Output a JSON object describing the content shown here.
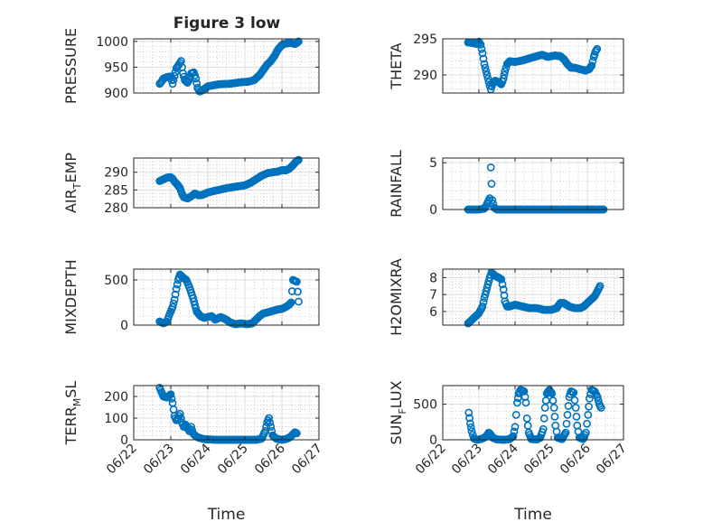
{
  "figure_title": "Figure 3 low",
  "marker_color": "#0072BD",
  "chart_data": [
    {
      "type": "scatter",
      "title": "Figure 3 low",
      "ylabel": "PRESSURE",
      "ylabel_sub": "",
      "ylim": [
        900,
        1005
      ],
      "yticks": [
        900,
        950,
        1000
      ],
      "xlim": [
        0,
        5
      ],
      "xticks": [
        "06/22",
        "06/23",
        "06/24",
        "06/25",
        "06/26",
        "06/27"
      ],
      "show_xticklabels": false,
      "xlabel": "",
      "grid": "on",
      "anchors": [
        [
          0.7,
          918
        ],
        [
          0.75,
          922
        ],
        [
          0.8,
          928
        ],
        [
          0.9,
          931
        ],
        [
          1.0,
          932
        ],
        [
          1.05,
          918
        ],
        [
          1.1,
          933
        ],
        [
          1.15,
          948
        ],
        [
          1.22,
          955
        ],
        [
          1.28,
          962
        ],
        [
          1.33,
          938
        ],
        [
          1.38,
          925
        ],
        [
          1.45,
          920
        ],
        [
          1.5,
          926
        ],
        [
          1.55,
          938
        ],
        [
          1.62,
          940
        ],
        [
          1.68,
          928
        ],
        [
          1.72,
          910
        ],
        [
          1.78,
          903
        ],
        [
          1.85,
          905
        ],
        [
          2.0,
          913
        ],
        [
          2.3,
          917
        ],
        [
          2.6,
          918
        ],
        [
          2.9,
          921
        ],
        [
          3.1,
          922
        ],
        [
          3.25,
          925
        ],
        [
          3.4,
          935
        ],
        [
          3.5,
          945
        ],
        [
          3.6,
          955
        ],
        [
          3.7,
          962
        ],
        [
          3.8,
          972
        ],
        [
          3.9,
          985
        ],
        [
          4.0,
          993
        ],
        [
          4.1,
          996
        ],
        [
          4.25,
          997
        ],
        [
          4.35,
          995
        ],
        [
          4.42,
          998
        ],
        [
          4.45,
          1000
        ]
      ]
    },
    {
      "type": "scatter",
      "title": "",
      "ylabel": "THETA",
      "ylabel_sub": "",
      "ylim": [
        287.5,
        295
      ],
      "yticks": [
        290,
        295
      ],
      "xlim": [
        0,
        5
      ],
      "xticks": [
        "06/22",
        "06/23",
        "06/24",
        "06/25",
        "06/26",
        "06/27"
      ],
      "show_xticklabels": false,
      "xlabel": "",
      "grid": "on",
      "anchors": [
        [
          0.7,
          294.5
        ],
        [
          0.85,
          294.4
        ],
        [
          0.95,
          294.3
        ],
        [
          1.0,
          294.6
        ],
        [
          1.05,
          294.2
        ],
        [
          1.1,
          293.0
        ],
        [
          1.15,
          291.5
        ],
        [
          1.2,
          290.5
        ],
        [
          1.25,
          289.5
        ],
        [
          1.3,
          288.5
        ],
        [
          1.33,
          288.0
        ],
        [
          1.38,
          288.8
        ],
        [
          1.45,
          289.2
        ],
        [
          1.55,
          289.0
        ],
        [
          1.62,
          288.7
        ],
        [
          1.68,
          289.5
        ],
        [
          1.72,
          290.5
        ],
        [
          1.78,
          291.5
        ],
        [
          1.85,
          291.9
        ],
        [
          2.0,
          291.8
        ],
        [
          2.2,
          292.0
        ],
        [
          2.4,
          292.3
        ],
        [
          2.6,
          292.6
        ],
        [
          2.75,
          292.8
        ],
        [
          2.9,
          292.5
        ],
        [
          3.1,
          292.7
        ],
        [
          3.25,
          292.6
        ],
        [
          3.35,
          292.2
        ],
        [
          3.45,
          291.5
        ],
        [
          3.55,
          291.0
        ],
        [
          3.65,
          291.0
        ],
        [
          3.8,
          290.8
        ],
        [
          3.95,
          290.6
        ],
        [
          4.05,
          290.8
        ],
        [
          4.12,
          291.3
        ],
        [
          4.18,
          292.5
        ],
        [
          4.22,
          293.2
        ],
        [
          4.27,
          293.6
        ]
      ]
    },
    {
      "type": "scatter",
      "title": "",
      "ylabel": "AIR",
      "ylabel_sub": "T",
      "ylabel_after": "EMP",
      "ylim": [
        280,
        294
      ],
      "yticks": [
        280,
        285,
        290
      ],
      "xlim": [
        0,
        5
      ],
      "xticks": [
        "06/22",
        "06/23",
        "06/24",
        "06/25",
        "06/26",
        "06/27"
      ],
      "show_xticklabels": false,
      "xlabel": "",
      "grid": "on",
      "anchors": [
        [
          0.7,
          287.5
        ],
        [
          0.8,
          288.0
        ],
        [
          0.9,
          288.5
        ],
        [
          1.0,
          288.6
        ],
        [
          1.05,
          288.2
        ],
        [
          1.1,
          287.4
        ],
        [
          1.2,
          286.2
        ],
        [
          1.25,
          285.5
        ],
        [
          1.3,
          284.0
        ],
        [
          1.35,
          283.0
        ],
        [
          1.45,
          282.6
        ],
        [
          1.55,
          283.2
        ],
        [
          1.65,
          284.0
        ],
        [
          1.75,
          283.5
        ],
        [
          1.85,
          283.6
        ],
        [
          2.0,
          284.3
        ],
        [
          2.2,
          284.8
        ],
        [
          2.5,
          285.5
        ],
        [
          2.8,
          286.0
        ],
        [
          3.0,
          286.3
        ],
        [
          3.15,
          287.0
        ],
        [
          3.3,
          288.0
        ],
        [
          3.45,
          289.0
        ],
        [
          3.6,
          289.7
        ],
        [
          3.75,
          290.0
        ],
        [
          3.9,
          290.2
        ],
        [
          4.0,
          290.6
        ],
        [
          4.1,
          290.5
        ],
        [
          4.2,
          291.0
        ],
        [
          4.3,
          292.0
        ],
        [
          4.38,
          293.0
        ],
        [
          4.45,
          293.5
        ]
      ]
    },
    {
      "type": "scatter",
      "title": "",
      "ylabel": "RAINFALL",
      "ylabel_sub": "",
      "ylim": [
        0,
        5.5
      ],
      "yticks": [
        0,
        5
      ],
      "xlim": [
        0,
        5
      ],
      "xticks": [
        "06/22",
        "06/23",
        "06/24",
        "06/25",
        "06/26",
        "06/27"
      ],
      "show_xticklabels": false,
      "xlabel": "",
      "grid": "on",
      "anchors": [
        [
          0.7,
          0
        ],
        [
          1.0,
          0
        ],
        [
          1.15,
          0.1
        ],
        [
          1.2,
          0.4
        ],
        [
          1.25,
          0.8
        ],
        [
          1.3,
          1.2
        ],
        [
          1.33,
          4.5
        ],
        [
          1.37,
          1.0
        ],
        [
          1.42,
          0.2
        ],
        [
          1.5,
          0
        ],
        [
          2.0,
          0
        ],
        [
          2.5,
          0
        ],
        [
          3.0,
          0
        ],
        [
          3.5,
          0
        ],
        [
          4.0,
          0
        ],
        [
          4.45,
          0
        ]
      ],
      "density": 3
    },
    {
      "type": "scatter",
      "title": "",
      "ylabel": "MIXDEPTH",
      "ylabel_sub": "",
      "ylim": [
        0,
        620
      ],
      "yticks": [
        0,
        500
      ],
      "xlim": [
        0,
        5
      ],
      "xticks": [
        "06/22",
        "06/23",
        "06/24",
        "06/25",
        "06/26",
        "06/27"
      ],
      "show_xticklabels": false,
      "xlabel": "",
      "grid": "on",
      "anchors": [
        [
          0.7,
          40
        ],
        [
          0.8,
          20
        ],
        [
          0.9,
          40
        ],
        [
          0.95,
          100
        ],
        [
          1.0,
          150
        ],
        [
          1.05,
          200
        ],
        [
          1.1,
          280
        ],
        [
          1.15,
          400
        ],
        [
          1.2,
          500
        ],
        [
          1.25,
          560
        ],
        [
          1.3,
          540
        ],
        [
          1.35,
          520
        ],
        [
          1.42,
          500
        ],
        [
          1.5,
          420
        ],
        [
          1.6,
          300
        ],
        [
          1.7,
          150
        ],
        [
          1.8,
          100
        ],
        [
          1.9,
          80
        ],
        [
          2.0,
          90
        ],
        [
          2.1,
          100
        ],
        [
          2.2,
          60
        ],
        [
          2.35,
          90
        ],
        [
          2.5,
          60
        ],
        [
          2.6,
          30
        ],
        [
          2.75,
          10
        ],
        [
          2.9,
          20
        ],
        [
          3.05,
          10
        ],
        [
          3.2,
          20
        ],
        [
          3.3,
          60
        ],
        [
          3.4,
          100
        ],
        [
          3.5,
          130
        ],
        [
          3.7,
          150
        ],
        [
          3.85,
          170
        ],
        [
          4.0,
          180
        ],
        [
          4.1,
          200
        ],
        [
          4.18,
          220
        ],
        [
          4.25,
          250
        ],
        [
          4.3,
          500
        ],
        [
          4.35,
          490
        ],
        [
          4.4,
          480
        ],
        [
          4.45,
          260
        ]
      ]
    },
    {
      "type": "scatter",
      "title": "",
      "ylabel": "H2OMIXRA",
      "ylabel_sub": "",
      "ylim": [
        5.2,
        8.5
      ],
      "yticks": [
        6,
        7,
        8
      ],
      "xlim": [
        0,
        5
      ],
      "xticks": [
        "06/22",
        "06/23",
        "06/24",
        "06/25",
        "06/26",
        "06/27"
      ],
      "show_xticklabels": false,
      "xlabel": "",
      "grid": "on",
      "anchors": [
        [
          0.7,
          5.3
        ],
        [
          0.8,
          5.5
        ],
        [
          0.9,
          5.7
        ],
        [
          1.0,
          5.9
        ],
        [
          1.1,
          6.3
        ],
        [
          1.15,
          6.8
        ],
        [
          1.2,
          7.2
        ],
        [
          1.25,
          7.6
        ],
        [
          1.3,
          8.0
        ],
        [
          1.35,
          8.3
        ],
        [
          1.45,
          8.1
        ],
        [
          1.55,
          8.0
        ],
        [
          1.62,
          7.9
        ],
        [
          1.68,
          7.3
        ],
        [
          1.72,
          6.6
        ],
        [
          1.78,
          6.3
        ],
        [
          1.85,
          6.3
        ],
        [
          2.0,
          6.4
        ],
        [
          2.2,
          6.3
        ],
        [
          2.4,
          6.2
        ],
        [
          2.6,
          6.2
        ],
        [
          2.8,
          6.1
        ],
        [
          3.0,
          6.1
        ],
        [
          3.15,
          6.2
        ],
        [
          3.25,
          6.5
        ],
        [
          3.35,
          6.5
        ],
        [
          3.5,
          6.3
        ],
        [
          3.65,
          6.2
        ],
        [
          3.8,
          6.2
        ],
        [
          3.9,
          6.3
        ],
        [
          4.0,
          6.5
        ],
        [
          4.1,
          6.7
        ],
        [
          4.2,
          6.9
        ],
        [
          4.28,
          7.2
        ],
        [
          4.35,
          7.5
        ]
      ]
    },
    {
      "type": "scatter",
      "title": "",
      "ylabel": "TERR",
      "ylabel_sub": "M",
      "ylabel_after": "SL",
      "ylim": [
        0,
        250
      ],
      "yticks": [
        0,
        100,
        200
      ],
      "xlim": [
        0,
        5
      ],
      "xticks": [
        "06/22",
        "06/23",
        "06/24",
        "06/25",
        "06/26",
        "06/27"
      ],
      "show_xticklabels": true,
      "xlabel": "Time",
      "grid": "on",
      "anchors": [
        [
          0.7,
          240
        ],
        [
          0.75,
          220
        ],
        [
          0.8,
          200
        ],
        [
          0.9,
          195
        ],
        [
          1.0,
          210
        ],
        [
          1.05,
          170
        ],
        [
          1.1,
          110
        ],
        [
          1.15,
          90
        ],
        [
          1.2,
          100
        ],
        [
          1.25,
          120
        ],
        [
          1.3,
          80
        ],
        [
          1.35,
          60
        ],
        [
          1.4,
          70
        ],
        [
          1.5,
          40
        ],
        [
          1.55,
          60
        ],
        [
          1.6,
          30
        ],
        [
          1.65,
          20
        ],
        [
          1.75,
          10
        ],
        [
          1.9,
          3
        ],
        [
          2.2,
          0
        ],
        [
          2.6,
          0
        ],
        [
          2.9,
          0
        ],
        [
          3.1,
          0
        ],
        [
          3.3,
          0
        ],
        [
          3.45,
          5
        ],
        [
          3.55,
          40
        ],
        [
          3.6,
          80
        ],
        [
          3.65,
          100
        ],
        [
          3.7,
          60
        ],
        [
          3.75,
          20
        ],
        [
          3.85,
          5
        ],
        [
          4.0,
          0
        ],
        [
          4.1,
          3
        ],
        [
          4.2,
          10
        ],
        [
          4.3,
          25
        ],
        [
          4.35,
          35
        ],
        [
          4.4,
          30
        ]
      ]
    },
    {
      "type": "scatter",
      "title": "",
      "ylabel": "SUN",
      "ylabel_sub": "F",
      "ylabel_after": "LUX",
      "ylim": [
        0,
        760
      ],
      "yticks": [
        0,
        500
      ],
      "xlim": [
        0,
        5
      ],
      "xticks": [
        "06/22",
        "06/23",
        "06/24",
        "06/25",
        "06/26",
        "06/27"
      ],
      "show_xticklabels": true,
      "xlabel": "Time",
      "grid": "on",
      "anchors": [
        [
          0.72,
          380
        ],
        [
          0.76,
          230
        ],
        [
          0.8,
          120
        ],
        [
          0.86,
          20
        ],
        [
          0.95,
          0
        ],
        [
          1.05,
          10
        ],
        [
          1.15,
          30
        ],
        [
          1.22,
          60
        ],
        [
          1.27,
          100
        ],
        [
          1.32,
          80
        ],
        [
          1.38,
          30
        ],
        [
          1.5,
          5
        ],
        [
          1.7,
          0
        ],
        [
          1.85,
          10
        ],
        [
          1.95,
          50
        ],
        [
          2.0,
          180
        ],
        [
          2.03,
          350
        ],
        [
          2.06,
          520
        ],
        [
          2.1,
          650
        ],
        [
          2.15,
          700
        ],
        [
          2.25,
          680
        ],
        [
          2.3,
          520
        ],
        [
          2.33,
          300
        ],
        [
          2.38,
          100
        ],
        [
          2.45,
          10
        ],
        [
          2.6,
          5
        ],
        [
          2.7,
          30
        ],
        [
          2.78,
          150
        ],
        [
          2.83,
          450
        ],
        [
          2.88,
          650
        ],
        [
          2.95,
          700
        ],
        [
          3.02,
          650
        ],
        [
          3.08,
          450
        ],
        [
          3.12,
          200
        ],
        [
          3.18,
          30
        ],
        [
          3.3,
          10
        ],
        [
          3.4,
          100
        ],
        [
          3.45,
          350
        ],
        [
          3.5,
          600
        ],
        [
          3.55,
          680
        ],
        [
          3.62,
          660
        ],
        [
          3.68,
          450
        ],
        [
          3.72,
          200
        ],
        [
          3.78,
          30
        ],
        [
          3.88,
          10
        ],
        [
          3.96,
          100
        ],
        [
          4.02,
          350
        ],
        [
          4.06,
          580
        ],
        [
          4.12,
          700
        ],
        [
          4.2,
          680
        ],
        [
          4.28,
          600
        ],
        [
          4.33,
          500
        ],
        [
          4.38,
          450
        ]
      ]
    }
  ]
}
